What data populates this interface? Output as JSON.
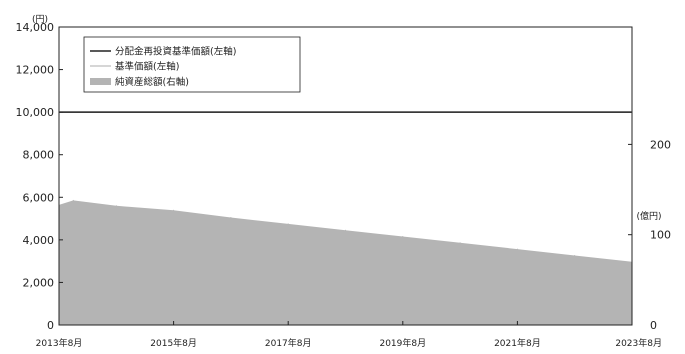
{
  "chart_data": {
    "type": "line",
    "title": "",
    "left_axis": {
      "unit_label": "(円)",
      "ylim": [
        0,
        14000
      ],
      "ticks": [
        0,
        2000,
        4000,
        6000,
        8000,
        10000,
        12000,
        14000
      ],
      "tick_labels": [
        "0",
        "2,000",
        "4,000",
        "6,000",
        "8,000",
        "10,000",
        "12,000",
        "14,000"
      ]
    },
    "right_axis": {
      "unit_label": "(億円)",
      "ylim": [
        0,
        330
      ],
      "ticks": [
        0,
        100,
        200
      ],
      "tick_labels": [
        "0",
        "100",
        "200"
      ]
    },
    "x_axis": {
      "xlim": [
        "2013-08",
        "2023-08"
      ],
      "ticks": [
        "2013-08",
        "2015-08",
        "2017-08",
        "2019-08",
        "2021-08",
        "2023-08"
      ],
      "tick_labels": [
        "2013年8月",
        "2015年8月",
        "2017年8月",
        "2019年8月",
        "2021年8月",
        "2023年8月"
      ]
    },
    "legend": {
      "placement": "top-left",
      "entries": [
        "分配金再投資基準価額(左軸)",
        "基準価額(左軸)",
        "純資産総額(右軸)"
      ]
    },
    "colors": {
      "reinvested_nav": "#222222",
      "nav": "#c8c8c8",
      "net_assets": "#b4b4b4"
    },
    "series": [
      {
        "name": "分配金再投資基準価額(左軸)",
        "axis": "left",
        "x": [
          "2013-08",
          "2023-08"
        ],
        "values": [
          10000,
          10000
        ]
      },
      {
        "name": "基準価額(左軸)",
        "axis": "left",
        "x": [
          "2013-08",
          "2023-08"
        ],
        "values": [
          10000,
          10000
        ]
      },
      {
        "name": "純資産総額(右軸)",
        "axis": "right",
        "type": "area",
        "x": [
          "2013-08",
          "2013-11",
          "2014-08",
          "2015-08",
          "2016-08",
          "2017-08",
          "2018-08",
          "2019-08",
          "2020-08",
          "2021-08",
          "2022-08",
          "2023-08"
        ],
        "values": [
          133,
          138,
          132,
          127,
          119,
          112,
          105,
          98,
          91,
          84,
          77,
          70
        ]
      }
    ]
  }
}
